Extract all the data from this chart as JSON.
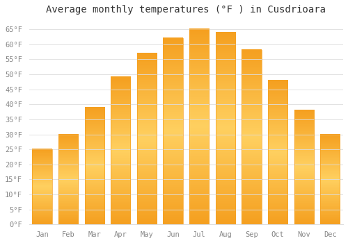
{
  "title": "Average monthly temperatures (°F ) in Cusdrioara",
  "months": [
    "Jan",
    "Feb",
    "Mar",
    "Apr",
    "May",
    "Jun",
    "Jul",
    "Aug",
    "Sep",
    "Oct",
    "Nov",
    "Dec"
  ],
  "values": [
    25,
    30,
    39,
    49,
    57,
    62,
    65,
    64,
    58,
    48,
    38,
    30
  ],
  "bar_color_center": "#FFD060",
  "bar_color_edge": "#F5A020",
  "background_color": "#FFFFFF",
  "grid_color": "#DDDDDD",
  "tick_label_color": "#888888",
  "title_color": "#333333",
  "ylim": [
    0,
    68
  ],
  "yticks": [
    0,
    5,
    10,
    15,
    20,
    25,
    30,
    35,
    40,
    45,
    50,
    55,
    60,
    65
  ],
  "ytick_labels": [
    "0°F",
    "5°F",
    "10°F",
    "15°F",
    "20°F",
    "25°F",
    "30°F",
    "35°F",
    "40°F",
    "45°F",
    "50°F",
    "55°F",
    "60°F",
    "65°F"
  ],
  "title_fontsize": 10,
  "tick_fontsize": 7.5,
  "figsize": [
    5.0,
    3.5
  ],
  "dpi": 100
}
